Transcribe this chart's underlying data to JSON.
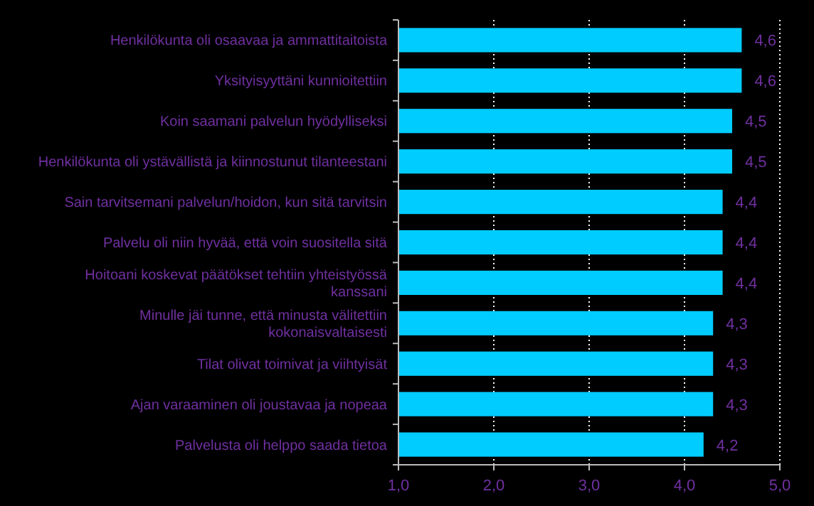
{
  "chart_data": {
    "type": "bar",
    "orientation": "horizontal",
    "categories": [
      "Henkilökunta oli osaavaa ja ammattitaitoista",
      "Yksityisyyttäni kunnioitettiin",
      "Koin saamani palvelun hyödylliseksi",
      "Henkilökunta oli ystävällistä ja kiinnostunut tilanteestani",
      "Sain tarvitsemani palvelun/hoidon, kun sitä tarvitsin",
      "Palvelu oli niin hyvää, että voin suositella sitä",
      "Hoitoani koskevat päätökset tehtiin yhteistyössä kanssani",
      "Minulle jäi tunne, että minusta välitettiin kokonaisvaltaisesti",
      "Tilat olivat toimivat ja viihtyisät",
      "Ajan varaaminen oli joustavaa ja nopeaa",
      "Palvelusta oli helppo saada tietoa"
    ],
    "values": [
      4.6,
      4.6,
      4.5,
      4.5,
      4.4,
      4.4,
      4.4,
      4.3,
      4.3,
      4.3,
      4.2
    ],
    "value_labels": [
      "4,6",
      "4,6",
      "4,5",
      "4,5",
      "4,4",
      "4,4",
      "4,4",
      "4,3",
      "4,3",
      "4,3",
      "4,2"
    ],
    "color": "#00ccff",
    "xlim": [
      1,
      5
    ],
    "xticks": [
      {
        "value": 1,
        "label": "1,0"
      },
      {
        "value": 2,
        "label": "2,0"
      },
      {
        "value": 3,
        "label": "3,0"
      },
      {
        "value": 4,
        "label": "4,0"
      },
      {
        "value": 5,
        "label": "5,0"
      }
    ],
    "grid": "x"
  }
}
